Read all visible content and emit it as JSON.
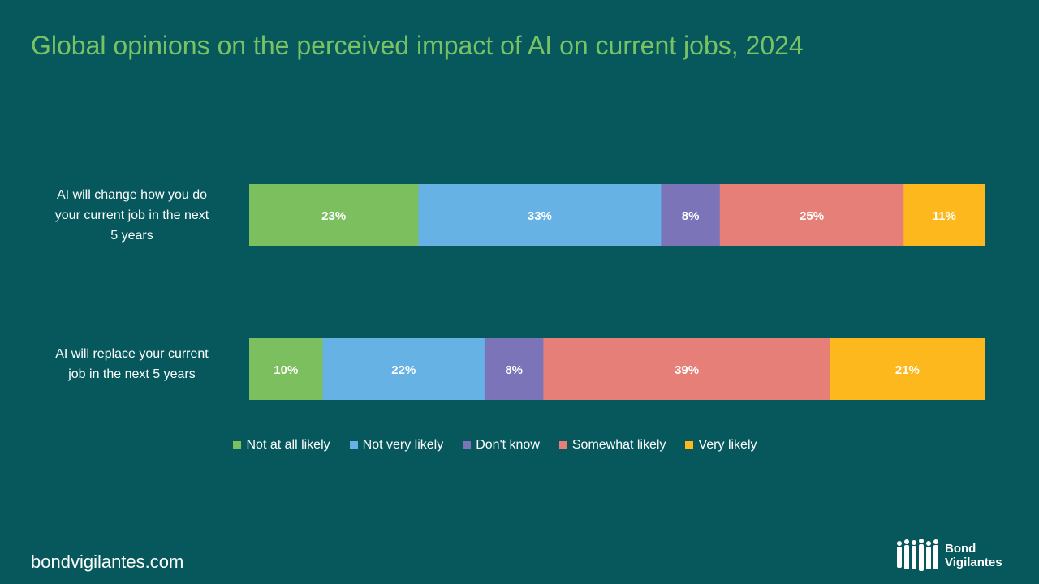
{
  "title": "Global opinions on the perceived impact of AI on current jobs, 2024",
  "footer": "bondvigilantes.com",
  "logo": {
    "line1": "Bond",
    "line2": "Vigilantes"
  },
  "chart_data": {
    "type": "bar",
    "orientation": "horizontal",
    "stacked": true,
    "normalized": true,
    "categories": [
      "AI will change how you do your current job in the next 5 years",
      "AI will replace your current job in the next 5 years"
    ],
    "category_lines": [
      [
        "AI will change how you do",
        "your current job in the next",
        "5 years"
      ],
      [
        "AI will replace your current",
        "job in the next 5 years"
      ]
    ],
    "series": [
      {
        "name": "Not at all likely",
        "color": "#7cbf5e",
        "values": [
          23,
          10
        ]
      },
      {
        "name": "Not very likely",
        "color": "#67b2e5",
        "values": [
          33,
          22
        ]
      },
      {
        "name": "Don't know",
        "color": "#7b74b9",
        "values": [
          8,
          8
        ]
      },
      {
        "name": "Somewhat likely",
        "color": "#e57f78",
        "values": [
          25,
          39
        ]
      },
      {
        "name": "Very likely",
        "color": "#fdb81e",
        "values": [
          11,
          21
        ]
      }
    ],
    "value_suffix": "%",
    "legend_position": "bottom",
    "grid": false
  }
}
